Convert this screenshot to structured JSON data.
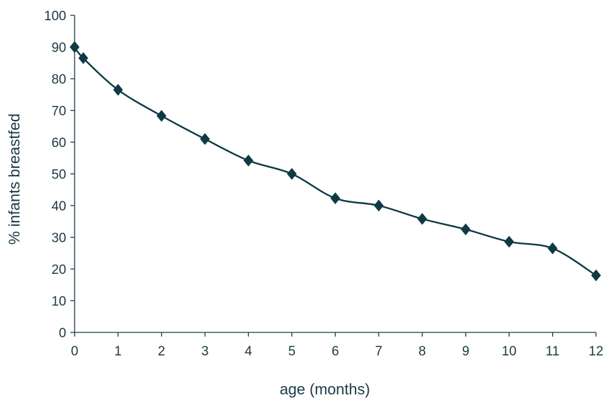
{
  "chart_data": {
    "type": "line",
    "title": "",
    "xlabel": "age  (months)",
    "ylabel": "% infants breastfed",
    "xlim": [
      0,
      12
    ],
    "ylim": [
      0,
      100
    ],
    "x_ticks": [
      "0",
      "1",
      "2",
      "3",
      "4",
      "5",
      "6",
      "7",
      "8",
      "9",
      "10",
      "11",
      "12"
    ],
    "y_ticks": [
      "0",
      "10",
      "20",
      "30",
      "40",
      "50",
      "60",
      "70",
      "80",
      "90",
      "100"
    ],
    "grid": false,
    "legend": "none",
    "marker": "diamond",
    "smooth": true,
    "color": "#0e3a44",
    "series": [
      {
        "x": [
          0,
          0.2,
          1,
          2,
          3,
          4,
          5,
          6,
          7,
          8,
          9,
          10,
          11,
          12
        ],
        "y": [
          90,
          86.5,
          76.5,
          68.3,
          61,
          54.2,
          50,
          42.3,
          40,
          35.8,
          32.5,
          28.6,
          26.5,
          18
        ]
      }
    ]
  }
}
